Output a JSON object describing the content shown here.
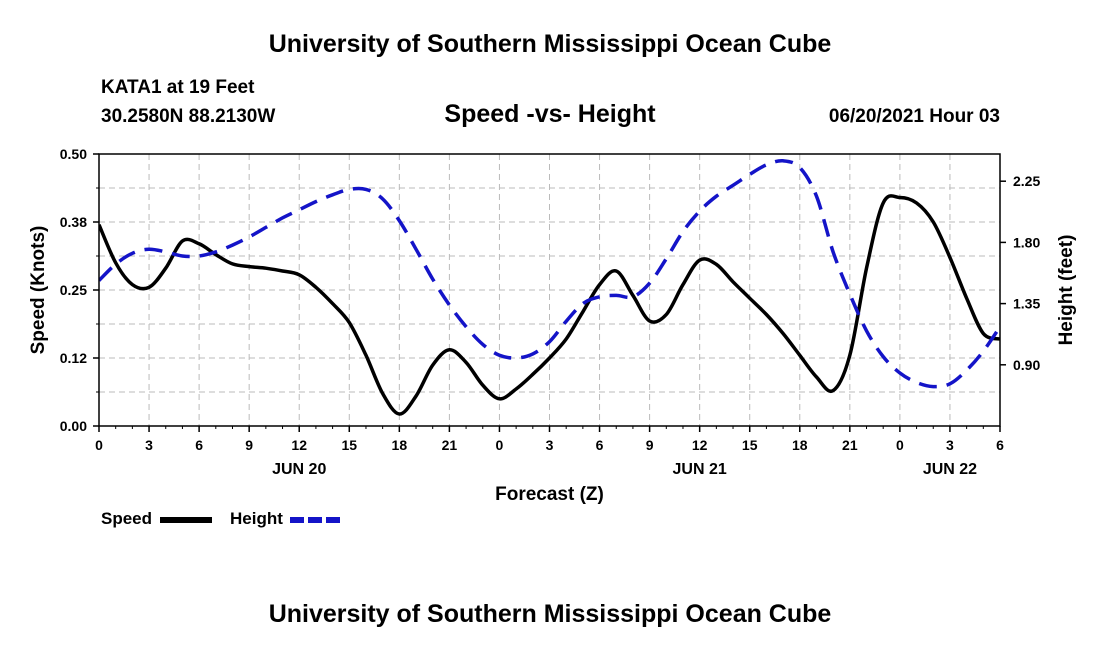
{
  "header": {
    "title": "University of Southern Mississippi Ocean Cube",
    "station": "KATA1 at 19 Feet",
    "coords": "30.2580N  88.2130W",
    "chart_title": "Speed -vs- Height",
    "datetime": "06/20/2021 Hour 03"
  },
  "footer": {
    "title": "University of Southern Mississippi Ocean Cube"
  },
  "legend": {
    "speed_label": "Speed",
    "height_label": "Height"
  },
  "colors": {
    "speed": "#000000",
    "height": "#1414c8",
    "grid": "#bbbbbb"
  },
  "chart_data": {
    "type": "line",
    "xlabel": "Forecast (Z)",
    "ylabel": "Speed (Knots)",
    "y2label": "Height (feet)",
    "xlim": [
      0,
      54
    ],
    "ylim": [
      0,
      0.5
    ],
    "y2lim": [
      0.45,
      2.45
    ],
    "x_ticks": [
      0,
      3,
      6,
      9,
      12,
      15,
      18,
      21,
      24,
      27,
      30,
      33,
      36,
      39,
      42,
      45,
      48,
      51,
      54
    ],
    "x_tick_labels": [
      "0",
      "3",
      "6",
      "9",
      "12",
      "15",
      "18",
      "21",
      "0",
      "3",
      "6",
      "9",
      "12",
      "15",
      "18",
      "21",
      "0",
      "3",
      "6"
    ],
    "day_labels": [
      {
        "x": 12,
        "text": "JUN 20"
      },
      {
        "x": 36,
        "text": "JUN 21"
      },
      {
        "x": 51,
        "text": "JUN 22"
      }
    ],
    "y_ticks": [
      0,
      0.125,
      0.25,
      0.375,
      0.5
    ],
    "y_tick_labels": [
      "0.00",
      "0.12",
      "0.25",
      "0.38",
      "0.50"
    ],
    "y2_ticks": [
      0.9,
      1.35,
      1.8,
      2.25
    ],
    "y2_tick_labels": [
      "0.90",
      "1.35",
      "1.80",
      "2.25"
    ],
    "series": [
      {
        "name": "Speed",
        "axis": "left",
        "x": [
          0,
          1,
          2,
          3,
          4,
          5,
          6,
          7,
          8,
          9,
          10,
          11,
          12,
          13,
          14,
          15,
          16,
          17,
          18,
          19,
          20,
          21,
          22,
          23,
          24,
          25,
          26,
          27,
          28,
          29,
          30,
          31,
          32,
          33,
          34,
          35,
          36,
          37,
          38,
          39,
          40,
          41,
          42,
          43,
          44,
          45,
          46,
          47,
          48,
          49,
          50,
          51,
          52,
          53,
          54
        ],
        "values": [
          0.37,
          0.3,
          0.26,
          0.255,
          0.29,
          0.34,
          0.335,
          0.315,
          0.298,
          0.293,
          0.29,
          0.285,
          0.278,
          0.255,
          0.225,
          0.19,
          0.13,
          0.06,
          0.022,
          0.055,
          0.112,
          0.14,
          0.117,
          0.075,
          0.05,
          0.068,
          0.095,
          0.125,
          0.16,
          0.21,
          0.26,
          0.285,
          0.24,
          0.193,
          0.205,
          0.26,
          0.305,
          0.297,
          0.265,
          0.235,
          0.205,
          0.17,
          0.13,
          0.09,
          0.065,
          0.13,
          0.29,
          0.41,
          0.42,
          0.41,
          0.375,
          0.31,
          0.235,
          0.17,
          0.14
        ],
        "tail": 0.16
      },
      {
        "name": "Height",
        "axis": "right",
        "x": [
          0,
          1,
          2,
          3,
          4,
          5,
          6,
          7,
          8,
          9,
          10,
          11,
          12,
          13,
          14,
          15,
          16,
          17,
          18,
          19,
          20,
          21,
          22,
          23,
          24,
          25,
          26,
          27,
          28,
          29,
          30,
          31,
          32,
          33,
          34,
          35,
          36,
          37,
          38,
          39,
          40,
          41,
          42,
          43,
          44,
          45,
          46,
          47,
          48,
          49,
          50,
          51,
          52,
          53,
          54
        ],
        "values": [
          1.52,
          1.64,
          1.72,
          1.75,
          1.73,
          1.7,
          1.7,
          1.73,
          1.78,
          1.84,
          1.91,
          1.98,
          2.04,
          2.1,
          2.15,
          2.19,
          2.19,
          2.12,
          1.96,
          1.75,
          1.53,
          1.34,
          1.18,
          1.05,
          0.97,
          0.95,
          0.98,
          1.07,
          1.22,
          1.35,
          1.4,
          1.41,
          1.4,
          1.5,
          1.68,
          1.88,
          2.03,
          2.14,
          2.22,
          2.3,
          2.37,
          2.4,
          2.35,
          2.14,
          1.73,
          1.42,
          1.15,
          0.96,
          0.84,
          0.77,
          0.74,
          0.76,
          0.86,
          1.0,
          1.18
        ]
      }
    ]
  }
}
